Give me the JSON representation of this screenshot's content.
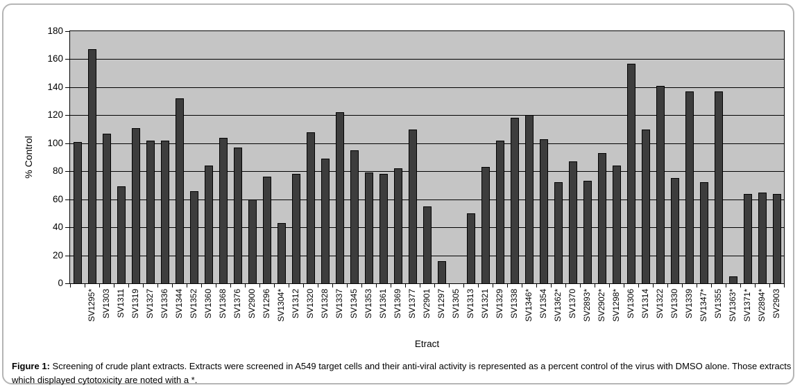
{
  "figure": {
    "caption_label": "Figure 1:",
    "caption_text": " Screening of crude plant extracts. Extracts were screened in A549 target cells and their anti-viral activity is represented as a percent control of the virus with DMSO alone. Those extracts which displayed cytotoxicity are noted with a *."
  },
  "chart_data": {
    "type": "bar",
    "title": "",
    "xlabel": "Etract",
    "ylabel": "% Control",
    "ylim": [
      0,
      180
    ],
    "yticks": [
      0,
      20,
      40,
      60,
      80,
      100,
      120,
      140,
      160,
      180
    ],
    "grid": true,
    "legend_position": "none",
    "plot_bg_color": "#c5c5c5",
    "bar_color": "#3d3d3d",
    "bar_border_color": "#000000",
    "categories": [
      "",
      "SV1295*",
      "SV1303",
      "SV1311",
      "SV1319",
      "SV1327",
      "SV1336",
      "SV1344",
      "SV1352",
      "SV1360",
      "SV1368",
      "SV1376",
      "SV2900",
      "SV1296",
      "SV1304*",
      "SV1312",
      "SV1320",
      "SV1328",
      "SV1337",
      "SV1345",
      "SV1353",
      "SV1361",
      "SV1369",
      "SV1377",
      "SV2901",
      "SV1297",
      "SV1305",
      "SV1313",
      "SV1321",
      "SV1329",
      "SV1338",
      "SV1346*",
      "SV1354",
      "SV1362*",
      "SV1370",
      "SV2893*",
      "SV2902*",
      "SV1298*",
      "SV1306",
      "SV1314",
      "SV1322",
      "SV1330",
      "SV1339",
      "SV1347*",
      "SV1355",
      "SV1363*",
      "SV1371*",
      "SV2894*",
      "SV2903"
    ],
    "values": [
      101,
      167,
      107,
      69,
      111,
      102,
      102,
      132,
      66,
      84,
      104,
      97,
      60,
      76,
      43,
      78,
      108,
      89,
      122,
      95,
      79,
      78,
      82,
      110,
      55,
      16,
      0,
      50,
      83,
      102,
      118,
      120,
      103,
      72,
      87,
      73,
      93,
      84,
      157,
      110,
      141,
      75,
      137,
      72,
      137,
      5,
      64,
      65,
      64
    ]
  }
}
